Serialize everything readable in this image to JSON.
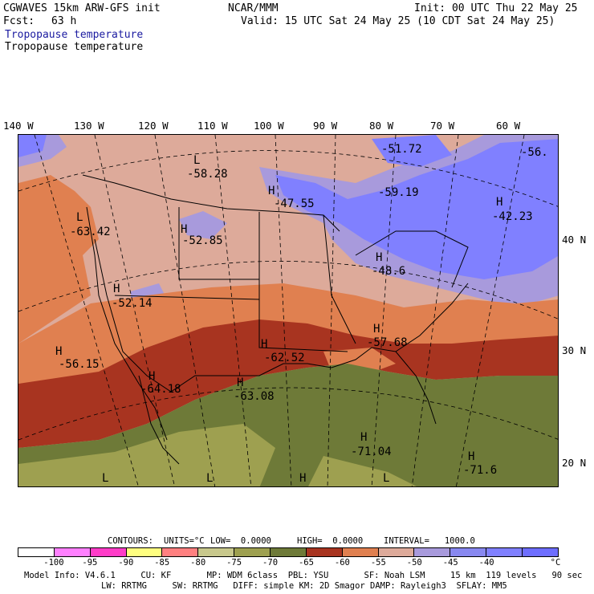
{
  "header": {
    "model": "CGWAVES 15km ARW-GFS init",
    "fcst_label": "Fcst:",
    "fcst_value": "63 h",
    "org": "NCAR/MMM",
    "init": "Init: 00 UTC Thu 22 May 25",
    "valid": "Valid: 15 UTC Sat 24 May 25 (10 CDT Sat 24 May 25)",
    "field_title_1": "Tropopause temperature",
    "field_title_2": "Tropopause temperature"
  },
  "lon_labels": [
    "140 W",
    "130 W",
    "120 W",
    "110 W",
    "100 W",
    "90 W",
    "80 W",
    "70 W",
    "60 W"
  ],
  "lat_labels": [
    "40 N",
    "30 N",
    "20 N"
  ],
  "map_labels": [
    {
      "hl": "L",
      "value": "-58.28"
    },
    {
      "hl": "L",
      "value": "-63.42"
    },
    {
      "hl": "H",
      "value": "-52.85"
    },
    {
      "hl": "H",
      "value": "-52.14"
    },
    {
      "hl": "H",
      "value": "-56.15"
    },
    {
      "hl": "H",
      "value": "-64.18"
    },
    {
      "hl": "H",
      "value": "-63.08"
    },
    {
      "hl": "H",
      "value": "-62.52"
    },
    {
      "hl": "H",
      "value": "-47.55"
    },
    {
      "hl": "",
      "value": "-51.72"
    },
    {
      "hl": "",
      "value": "-59.19"
    },
    {
      "hl": "",
      "value": "-56."
    },
    {
      "hl": "H",
      "value": "-42.23"
    },
    {
      "hl": "H",
      "value": "-48.6"
    },
    {
      "hl": "H",
      "value": "-57.68"
    },
    {
      "hl": "H",
      "value": "-71.04"
    },
    {
      "hl": "H",
      "value": "-71.6"
    }
  ],
  "bottom_ls": [
    "L",
    "L",
    "H",
    "L"
  ],
  "contour_line": {
    "contours": "CONTOURS:",
    "units": "UNITS=°C",
    "low": "LOW=  0.0000",
    "high": "HIGH=  0.0000",
    "interval": "INTERVAL=   1000.0"
  },
  "colorbar": {
    "colors": [
      "#ffffff",
      "#ff80ff",
      "#ff3cc8",
      "#ffff80",
      "#ff8080",
      "#c8c88c",
      "#9ea050",
      "#6e7a38",
      "#a83420",
      "#e08050",
      "#ddaa9a",
      "#a89adc",
      "#8888f0",
      "#8080ff",
      "#6e6eff"
    ],
    "tick_labels": [
      "-100",
      "-95",
      "-90",
      "-85",
      "-80",
      "-75",
      "-70",
      "-65",
      "-60",
      "-55",
      "-50",
      "-45",
      "-40"
    ],
    "unit": "°C"
  },
  "footer": {
    "line1": "Model Info: V4.6.1     CU: KF       MP: WDM 6class  PBL: YSU       SF: Noah LSM     15 km  119 levels   90 sec",
    "line2": "LW: RRTMG     SW: RRTMG   DIFF: simple KM: 2D Smagor DAMP: Rayleigh3  SFLAY: MM5"
  },
  "colors": {
    "deep_blue": "#8080ff",
    "light_purple": "#a89adc",
    "pinkish": "#ddaa9a",
    "orange": "#e08050",
    "dark_red": "#a83420",
    "olive": "#6e7a38",
    "khaki": "#9ea050"
  }
}
